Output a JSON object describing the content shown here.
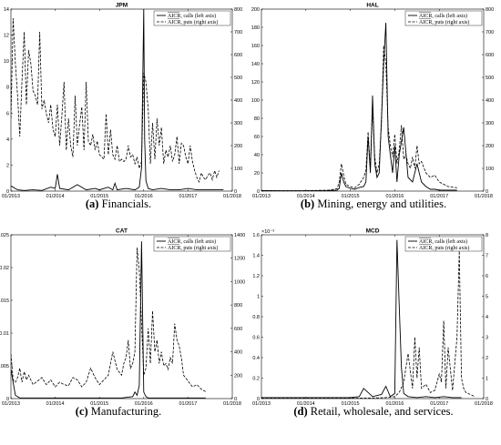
{
  "legend": {
    "calls": "AICR, calls (left axis)",
    "puts": "AICR, puts (right axis)"
  },
  "chart_data": [
    {
      "type": "line",
      "title": "JPM",
      "caption_label": "(a)",
      "caption_text": "Financials.",
      "x_ticks": [
        "01/2013",
        "01/2014",
        "01/2015",
        "01/2016",
        "01/2017",
        "01/2018"
      ],
      "x_tick_values": [
        0,
        1,
        2,
        3,
        4,
        5
      ],
      "xlim": [
        0,
        5
      ],
      "y_left": {
        "ticks": [
          "0",
          "2",
          "4",
          "6",
          "8",
          "10",
          "12",
          "14"
        ],
        "tick_values": [
          0,
          2,
          4,
          6,
          8,
          10,
          12,
          14
        ],
        "lim": [
          0,
          14
        ],
        "exponent": ""
      },
      "y_right": {
        "ticks": [
          "0",
          "100",
          "200",
          "300",
          "400",
          "500",
          "600",
          "700",
          "800"
        ],
        "tick_values": [
          0,
          100,
          200,
          300,
          400,
          500,
          600,
          700,
          800
        ],
        "lim": [
          0,
          800
        ]
      },
      "series": [
        {
          "name": "calls",
          "axis": "left",
          "style": "solid",
          "x": [
            0,
            0.15,
            0.3,
            0.5,
            0.7,
            0.9,
            1.0,
            1.05,
            1.1,
            1.3,
            1.5,
            1.7,
            1.9,
            2.0,
            2.2,
            2.3,
            2.35,
            2.4,
            2.6,
            2.8,
            2.9,
            2.95,
            3.0,
            3.02,
            3.05,
            3.1,
            3.2,
            3.4,
            3.6,
            3.8,
            4.0,
            4.2,
            4.4,
            4.6,
            4.8
          ],
          "y": [
            0.4,
            0.1,
            0.05,
            0.1,
            0.05,
            0.3,
            0.2,
            1.3,
            0.2,
            0.1,
            0.5,
            0.1,
            0.2,
            0.1,
            0.3,
            0.1,
            0.6,
            0.1,
            0.2,
            0.1,
            0.3,
            1.8,
            14,
            4,
            0.8,
            0.2,
            0.1,
            0.2,
            0.1,
            0.1,
            0.2,
            0.1,
            0.1,
            0.1,
            0.1
          ]
        },
        {
          "name": "puts",
          "axis": "right",
          "style": "dashed",
          "x": [
            0,
            0.05,
            0.1,
            0.15,
            0.2,
            0.25,
            0.3,
            0.35,
            0.4,
            0.45,
            0.5,
            0.55,
            0.6,
            0.65,
            0.7,
            0.75,
            0.8,
            0.85,
            0.9,
            0.95,
            1.0,
            1.05,
            1.1,
            1.15,
            1.2,
            1.25,
            1.3,
            1.35,
            1.4,
            1.45,
            1.5,
            1.55,
            1.6,
            1.65,
            1.7,
            1.75,
            1.8,
            1.85,
            1.9,
            1.95,
            2.0,
            2.05,
            2.1,
            2.15,
            2.2,
            2.25,
            2.3,
            2.35,
            2.4,
            2.45,
            2.5,
            2.55,
            2.6,
            2.65,
            2.7,
            2.75,
            2.8,
            2.85,
            2.9,
            2.95,
            3.0,
            3.05,
            3.1,
            3.15,
            3.2,
            3.25,
            3.3,
            3.35,
            3.4,
            3.45,
            3.5,
            3.55,
            3.6,
            3.65,
            3.7,
            3.75,
            3.8,
            3.85,
            3.9,
            3.95,
            4.0,
            4.05,
            4.1,
            4.15,
            4.2,
            4.25,
            4.3,
            4.35,
            4.4,
            4.45,
            4.5,
            4.55,
            4.6,
            4.65,
            4.7
          ],
          "y": [
            320,
            760,
            560,
            420,
            240,
            480,
            700,
            380,
            620,
            560,
            440,
            420,
            380,
            700,
            360,
            400,
            340,
            300,
            380,
            270,
            240,
            380,
            200,
            330,
            480,
            180,
            320,
            200,
            150,
            420,
            200,
            290,
            370,
            180,
            480,
            220,
            200,
            250,
            180,
            220,
            160,
            150,
            140,
            340,
            160,
            270,
            160,
            140,
            200,
            130,
            140,
            130,
            140,
            200,
            150,
            160,
            120,
            150,
            100,
            130,
            520,
            480,
            360,
            120,
            300,
            140,
            320,
            200,
            280,
            120,
            180,
            150,
            200,
            130,
            160,
            240,
            120,
            210,
            200,
            150,
            120,
            200,
            130,
            90,
            60,
            40,
            80,
            60,
            50,
            70,
            80,
            50,
            90,
            60,
            90
          ]
        }
      ]
    },
    {
      "type": "line",
      "title": "HAL",
      "caption_label": "(b)",
      "caption_text": "Mining, energy and utilities.",
      "x_ticks": [
        "01/2013",
        "01/2014",
        "01/2015",
        "01/2016",
        "01/2017",
        "01/2018"
      ],
      "x_tick_values": [
        0,
        1,
        2,
        3,
        4,
        5
      ],
      "xlim": [
        0,
        5
      ],
      "y_left": {
        "ticks": [
          "0",
          "20",
          "40",
          "60",
          "80",
          "100",
          "120",
          "140",
          "160",
          "180",
          "200"
        ],
        "tick_values": [
          0,
          20,
          40,
          60,
          80,
          100,
          120,
          140,
          160,
          180,
          200
        ],
        "lim": [
          0,
          200
        ],
        "exponent": ""
      },
      "y_right": {
        "ticks": [
          "0",
          "100",
          "200",
          "300",
          "400",
          "500",
          "600",
          "700",
          "800"
        ],
        "tick_values": [
          0,
          100,
          200,
          300,
          400,
          500,
          600,
          700,
          800
        ],
        "lim": [
          0,
          800
        ]
      },
      "series": [
        {
          "name": "calls",
          "axis": "left",
          "style": "solid",
          "x": [
            0,
            0.5,
            1.0,
            1.5,
            1.7,
            1.75,
            1.8,
            1.85,
            1.9,
            2.0,
            2.1,
            2.2,
            2.3,
            2.35,
            2.4,
            2.45,
            2.5,
            2.55,
            2.6,
            2.65,
            2.7,
            2.75,
            2.8,
            2.85,
            2.9,
            2.95,
            3.0,
            3.05,
            3.1,
            3.2,
            3.3,
            3.4,
            3.5,
            3.6,
            3.7,
            3.8,
            3.9,
            4.0,
            4.2,
            4.4
          ],
          "y": [
            0.5,
            0.3,
            0.3,
            0.5,
            1,
            3,
            20,
            10,
            5,
            3,
            2,
            4,
            5,
            10,
            60,
            20,
            105,
            30,
            15,
            20,
            80,
            140,
            185,
            60,
            40,
            20,
            50,
            10,
            40,
            70,
            15,
            10,
            30,
            10,
            5,
            2,
            2,
            1,
            1,
            1
          ]
        },
        {
          "name": "puts",
          "axis": "right",
          "style": "dashed",
          "x": [
            0,
            0.5,
            1.0,
            1.5,
            1.7,
            1.75,
            1.8,
            1.85,
            1.9,
            2.0,
            2.1,
            2.2,
            2.3,
            2.35,
            2.4,
            2.45,
            2.5,
            2.55,
            2.6,
            2.65,
            2.7,
            2.75,
            2.8,
            2.85,
            2.9,
            2.95,
            3.0,
            3.05,
            3.1,
            3.15,
            3.2,
            3.25,
            3.3,
            3.35,
            3.4,
            3.45,
            3.5,
            3.55,
            3.6,
            3.7,
            3.8,
            3.9,
            4.0,
            4.2,
            4.4
          ],
          "y": [
            2,
            2,
            2,
            4,
            10,
            40,
            120,
            70,
            30,
            20,
            15,
            30,
            60,
            90,
            260,
            100,
            360,
            150,
            80,
            120,
            300,
            640,
            560,
            280,
            200,
            150,
            250,
            120,
            180,
            290,
            140,
            160,
            120,
            100,
            150,
            100,
            200,
            120,
            130,
            80,
            60,
            70,
            40,
            20,
            15
          ]
        }
      ]
    },
    {
      "type": "line",
      "title": "CAT",
      "caption_label": "(c)",
      "caption_text": "Manufacturing.",
      "x_ticks": [
        "01/2013",
        "01/2014",
        "01/2015",
        "01/2016",
        "01/2017",
        "01/2018"
      ],
      "x_tick_values": [
        0,
        1,
        2,
        3,
        4,
        5
      ],
      "xlim": [
        0,
        5
      ],
      "y_left": {
        "ticks": [
          "0",
          "0.005",
          "0.01",
          "0.015",
          "0.02",
          "0.025"
        ],
        "tick_values": [
          0,
          0.005,
          0.01,
          0.015,
          0.02,
          0.025
        ],
        "lim": [
          0,
          0.025
        ],
        "exponent": ""
      },
      "y_right": {
        "ticks": [
          "0",
          "200",
          "400",
          "600",
          "800",
          "1000",
          "1200",
          "1400"
        ],
        "tick_values": [
          0,
          200,
          400,
          600,
          800,
          1000,
          1200,
          1400
        ],
        "lim": [
          0,
          1400
        ]
      },
      "series": [
        {
          "name": "calls",
          "axis": "left",
          "style": "solid",
          "x": [
            0,
            0.05,
            0.1,
            0.2,
            0.5,
            1.0,
            1.5,
            2.0,
            2.5,
            2.75,
            2.8,
            2.85,
            2.9,
            2.95,
            3.0,
            3.05,
            3.1,
            3.2,
            3.4,
            3.6,
            3.8,
            4.0,
            4.2,
            4.4
          ],
          "y": [
            0.0045,
            0.0025,
            0.0005,
            0.0001,
            0.0001,
            0.0001,
            0.0001,
            0.0001,
            0.0001,
            0.0003,
            0.001,
            0.0005,
            0.002,
            0.024,
            0.001,
            0.0003,
            0.0001,
            0.0001,
            0.0001,
            0.0001,
            0.0001,
            0.0001,
            0.0001,
            0.0001
          ]
        },
        {
          "name": "puts",
          "axis": "right",
          "style": "dashed",
          "x": [
            0,
            0.05,
            0.1,
            0.15,
            0.2,
            0.25,
            0.3,
            0.35,
            0.4,
            0.5,
            0.6,
            0.7,
            0.8,
            0.9,
            1.0,
            1.1,
            1.2,
            1.3,
            1.4,
            1.5,
            1.6,
            1.7,
            1.8,
            1.9,
            2.0,
            2.1,
            2.2,
            2.3,
            2.4,
            2.5,
            2.55,
            2.6,
            2.65,
            2.7,
            2.75,
            2.8,
            2.85,
            2.9,
            3.0,
            3.05,
            3.1,
            3.15,
            3.2,
            3.25,
            3.3,
            3.35,
            3.4,
            3.45,
            3.5,
            3.55,
            3.6,
            3.65,
            3.7,
            3.75,
            3.8,
            3.85,
            3.9,
            4.0,
            4.1,
            4.2,
            4.3,
            4.4
          ],
          "y": [
            380,
            160,
            140,
            180,
            260,
            140,
            230,
            160,
            200,
            120,
            150,
            180,
            120,
            160,
            100,
            140,
            120,
            110,
            180,
            160,
            100,
            140,
            260,
            180,
            120,
            160,
            200,
            400,
            250,
            200,
            300,
            350,
            500,
            260,
            300,
            400,
            1290,
            1100,
            200,
            260,
            600,
            300,
            750,
            400,
            500,
            300,
            400,
            280,
            300,
            250,
            350,
            300,
            640,
            500,
            450,
            350,
            200,
            150,
            100,
            120,
            80,
            60
          ]
        }
      ]
    },
    {
      "type": "line",
      "title": "MCD",
      "caption_label": "(d)",
      "caption_text": "Retail, wholesale, and services.",
      "x_ticks": [
        "01/2013",
        "01/2014",
        "01/2015",
        "01/2016",
        "01/2017",
        "01/2018"
      ],
      "x_tick_values": [
        0,
        1,
        2,
        3,
        4,
        5
      ],
      "xlim": [
        0,
        5
      ],
      "y_left": {
        "ticks": [
          "0",
          "0.2",
          "0.4",
          "0.6",
          "0.8",
          "1",
          "1.2",
          "1.4",
          "1.6"
        ],
        "tick_values": [
          0,
          0.2,
          0.4,
          0.6,
          0.8,
          1,
          1.2,
          1.4,
          1.6
        ],
        "lim": [
          0,
          1.6
        ],
        "exponent": "×10⁻³"
      },
      "y_right": {
        "ticks": [
          "0",
          "1",
          "2",
          "3",
          "4",
          "5",
          "6",
          "7",
          "8"
        ],
        "tick_values": [
          0,
          1,
          2,
          3,
          4,
          5,
          6,
          7,
          8
        ],
        "lim": [
          0,
          8
        ]
      },
      "series": [
        {
          "name": "calls",
          "axis": "left",
          "style": "solid",
          "x": [
            0,
            0.5,
            1.0,
            1.5,
            2.0,
            2.2,
            2.3,
            2.5,
            2.7,
            2.8,
            2.9,
            3.0,
            3.05,
            3.1,
            3.15,
            3.2,
            3.3,
            3.5,
            3.7,
            3.9,
            4.1,
            4.3,
            4.5
          ],
          "y": [
            0.01,
            0.01,
            0.01,
            0.01,
            0.01,
            0.02,
            0.1,
            0.02,
            0.04,
            0.12,
            0.02,
            0.05,
            1.55,
            0.9,
            0.3,
            0.05,
            0.02,
            0.01,
            0.02,
            0.01,
            0.02,
            0.01,
            0.01
          ]
        },
        {
          "name": "puts",
          "axis": "right",
          "style": "dashed",
          "x": [
            0,
            0.5,
            1.0,
            1.5,
            2.0,
            2.5,
            2.8,
            3.0,
            3.1,
            3.2,
            3.3,
            3.4,
            3.45,
            3.5,
            3.55,
            3.6,
            3.7,
            3.8,
            3.9,
            4.0,
            4.05,
            4.1,
            4.15,
            4.2,
            4.3,
            4.4,
            4.45,
            4.5,
            4.55,
            4.6,
            4.7,
            4.8
          ],
          "y": [
            0.02,
            0.02,
            0.02,
            0.02,
            0.02,
            0.03,
            0.05,
            0.1,
            0.3,
            0.8,
            2.2,
            0.5,
            3.0,
            1.0,
            2.5,
            0.5,
            0.7,
            0.3,
            0.4,
            1.2,
            0.8,
            3.8,
            0.5,
            2.5,
            0.4,
            3.0,
            7.2,
            1.0,
            0.5,
            0.3,
            0.2,
            0.1
          ]
        }
      ]
    }
  ]
}
